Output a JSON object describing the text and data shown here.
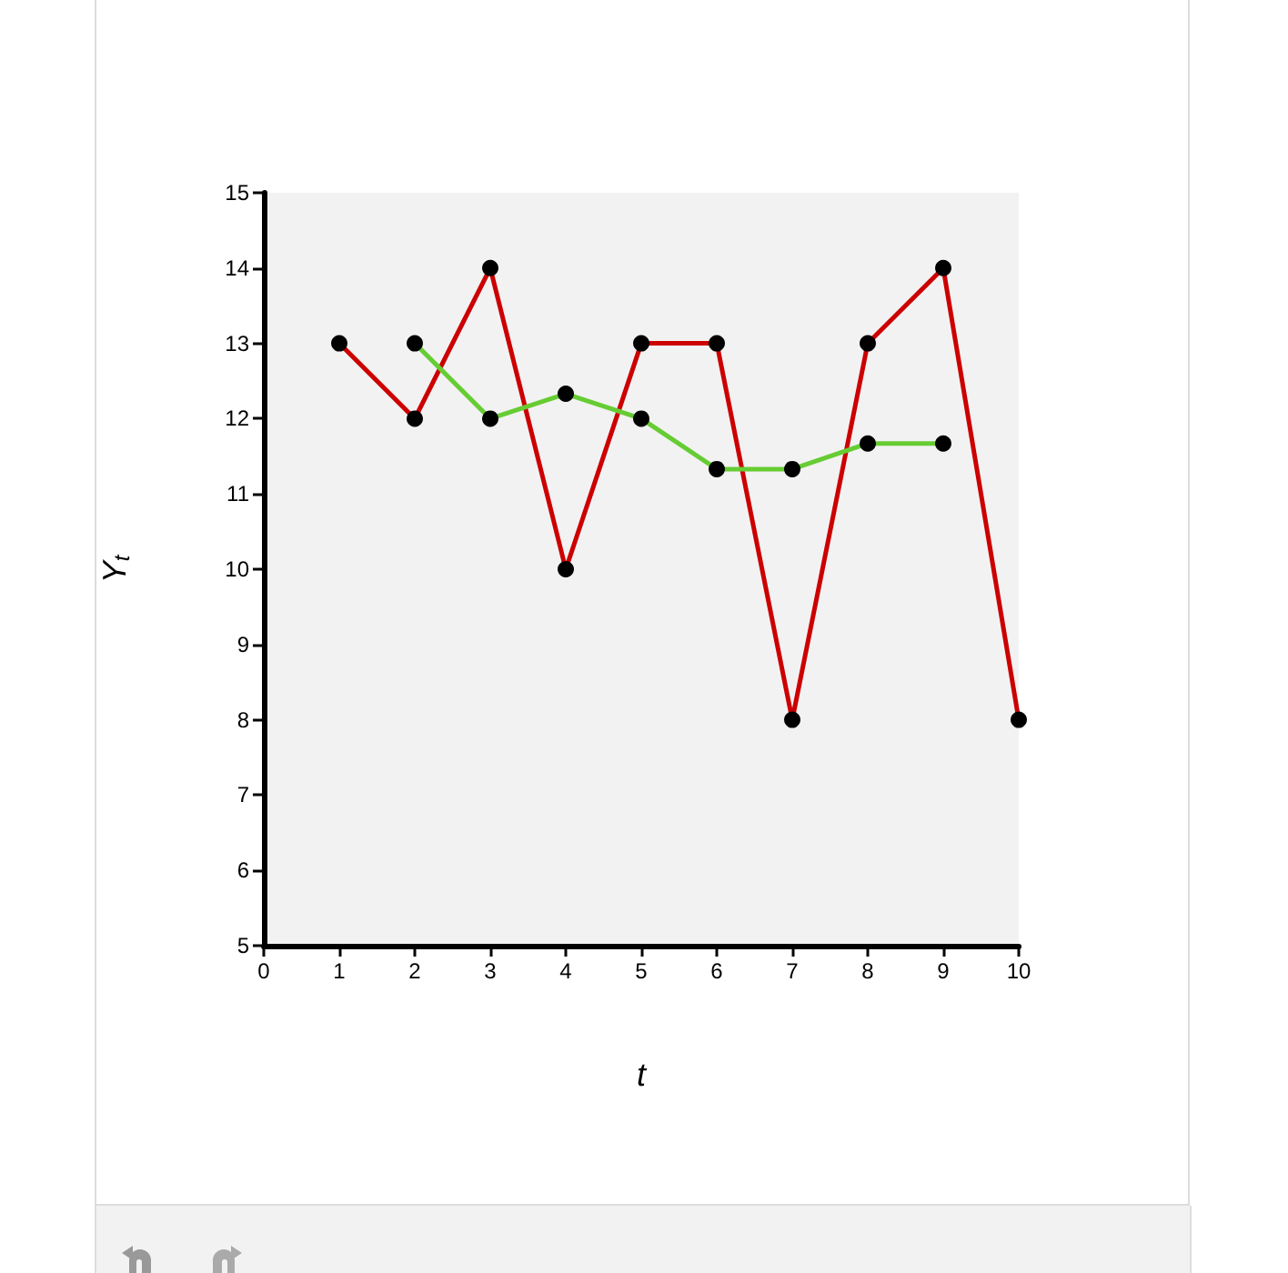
{
  "chart_data": {
    "type": "line",
    "xlabel": "t",
    "ylabel": "Y$_{t}$",
    "xlim": [
      0,
      10
    ],
    "xticks": [
      0,
      1,
      2,
      3,
      4,
      5,
      6,
      7,
      8,
      9,
      10
    ],
    "ylim": [
      5,
      15
    ],
    "yticks": [
      5,
      6,
      7,
      8,
      9,
      10,
      11,
      12,
      13,
      14,
      15
    ],
    "grid": false,
    "marker": "circle",
    "line_style": "solid",
    "series": [
      {
        "color": "#cc0000",
        "x": [
          1,
          2,
          3,
          4,
          5,
          6,
          7,
          8,
          9,
          10
        ],
        "values": [
          13,
          12,
          14,
          10,
          13,
          13,
          8,
          13,
          14,
          8
        ]
      },
      {
        "color": "#66cc33",
        "x": [
          2,
          3,
          4,
          5,
          6,
          7,
          8,
          9
        ],
        "values": [
          13,
          12,
          12.33,
          12,
          11.33,
          11.33,
          11.67,
          11.67
        ]
      }
    ]
  }
}
